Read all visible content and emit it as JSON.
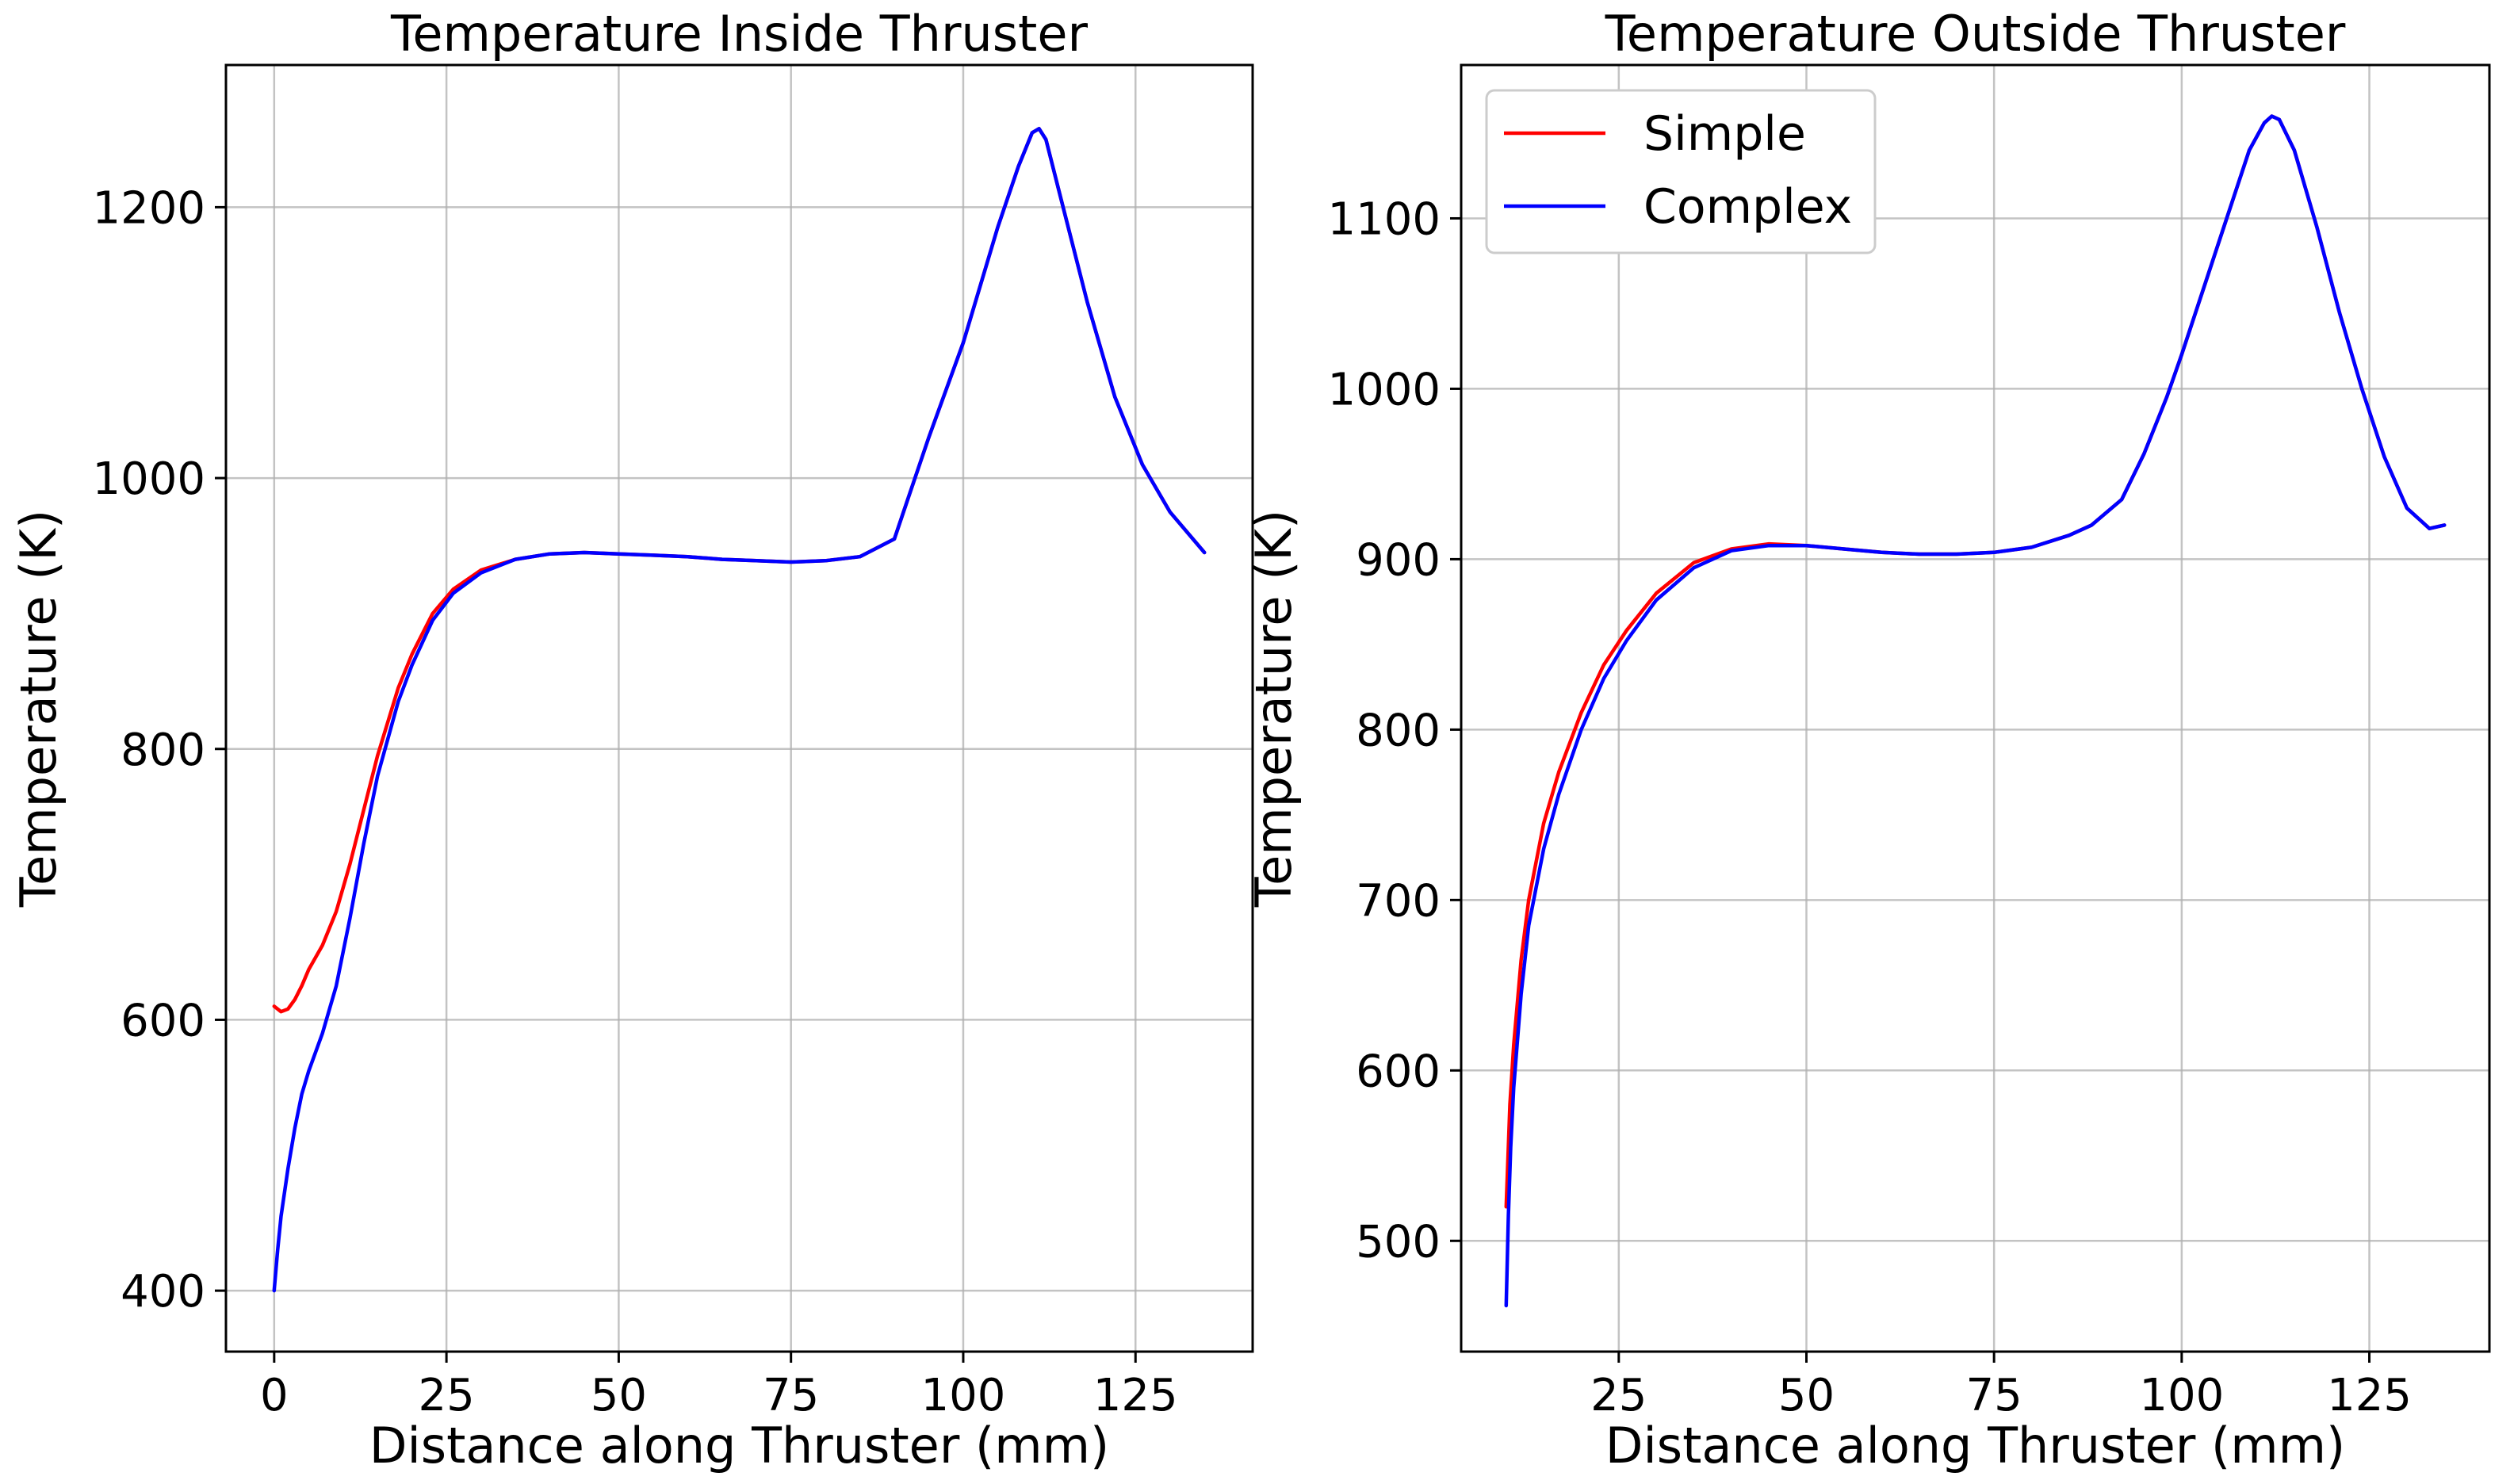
{
  "figure": {
    "charts_label": "Two line charts comparing Simple and Complex temperature models"
  },
  "colors": {
    "simple": "#ff0000",
    "complex": "#0000ff"
  },
  "chart_data": [
    {
      "type": "line",
      "title": "Temperature Inside Thruster",
      "xlabel": "Distance along Thruster (mm)",
      "ylabel": "Temperature (K)",
      "xlim": [
        -7,
        142
      ],
      "ylim": [
        355,
        1305
      ],
      "xticks": [
        0,
        25,
        50,
        75,
        100,
        125
      ],
      "yticks": [
        400,
        600,
        800,
        1000,
        1200
      ],
      "grid": true,
      "legend": null,
      "series": [
        {
          "name": "Simple",
          "color": "#ff0000",
          "x": [
            0,
            1,
            2,
            3,
            4,
            5,
            7,
            9,
            11,
            13,
            15,
            18,
            20,
            23,
            26,
            30,
            35,
            40,
            45,
            50,
            55,
            60,
            65,
            70,
            75,
            80,
            85,
            90,
            92,
            95,
            100,
            105,
            108,
            110,
            111,
            112,
            114,
            118,
            122,
            126,
            130,
            135
          ],
          "y": [
            610,
            606,
            608,
            615,
            625,
            637,
            655,
            680,
            715,
            755,
            795,
            845,
            870,
            900,
            918,
            932,
            940,
            944,
            945,
            944,
            943,
            942,
            940,
            939,
            938,
            939,
            942,
            955,
            985,
            1030,
            1100,
            1185,
            1230,
            1255,
            1258,
            1250,
            1210,
            1130,
            1060,
            1010,
            975,
            945
          ]
        },
        {
          "name": "Complex",
          "color": "#0000ff",
          "x": [
            0,
            0.5,
            1,
            2,
            3,
            4,
            5,
            7,
            9,
            11,
            13,
            15,
            18,
            20,
            23,
            26,
            30,
            35,
            40,
            45,
            50,
            55,
            60,
            65,
            70,
            75,
            80,
            85,
            90,
            92,
            95,
            100,
            105,
            108,
            110,
            111,
            112,
            114,
            118,
            122,
            126,
            130,
            135
          ],
          "y": [
            400,
            430,
            455,
            490,
            520,
            545,
            562,
            590,
            625,
            675,
            730,
            780,
            835,
            862,
            895,
            915,
            930,
            940,
            944,
            945,
            944,
            943,
            942,
            940,
            939,
            938,
            939,
            942,
            955,
            985,
            1030,
            1100,
            1185,
            1230,
            1255,
            1258,
            1250,
            1210,
            1130,
            1060,
            1010,
            975,
            945
          ]
        }
      ]
    },
    {
      "type": "line",
      "title": "Temperature Outside Thruster",
      "xlabel": "Distance along Thruster (mm)",
      "ylabel": "Temperature (K)",
      "xlim": [
        4,
        141
      ],
      "ylim": [
        435,
        1190
      ],
      "xticks": [
        25,
        50,
        75,
        100,
        125
      ],
      "yticks": [
        500,
        600,
        700,
        800,
        900,
        1000,
        1100
      ],
      "grid": true,
      "legend": "top-left",
      "series": [
        {
          "name": "Simple",
          "color": "#ff0000",
          "x": [
            10,
            10.5,
            11,
            12,
            13,
            15,
            17,
            20,
            23,
            26,
            30,
            35,
            40,
            45,
            50,
            55,
            60,
            65,
            70,
            75,
            80,
            85,
            88,
            92,
            95,
            98,
            100,
            103,
            106,
            109,
            111,
            112,
            113,
            115,
            118,
            121,
            124,
            127,
            130,
            133,
            135
          ],
          "y": [
            520,
            580,
            615,
            665,
            700,
            745,
            775,
            810,
            838,
            858,
            880,
            898,
            906,
            909,
            908,
            906,
            904,
            903,
            903,
            904,
            907,
            914,
            920,
            935,
            962,
            995,
            1020,
            1060,
            1100,
            1140,
            1156,
            1160,
            1158,
            1140,
            1095,
            1045,
            1000,
            960,
            930,
            918,
            920
          ]
        },
        {
          "name": "Complex",
          "color": "#0000ff",
          "x": [
            10,
            10.3,
            10.6,
            11,
            12,
            13,
            15,
            17,
            20,
            23,
            26,
            30,
            35,
            40,
            45,
            50,
            55,
            60,
            65,
            70,
            75,
            80,
            85,
            88,
            92,
            95,
            98,
            100,
            103,
            106,
            109,
            111,
            112,
            113,
            115,
            118,
            121,
            124,
            127,
            130,
            133,
            135
          ],
          "y": [
            462,
            515,
            555,
            590,
            645,
            685,
            730,
            762,
            800,
            830,
            852,
            876,
            895,
            905,
            908,
            908,
            906,
            904,
            903,
            903,
            904,
            907,
            914,
            920,
            935,
            962,
            995,
            1020,
            1060,
            1100,
            1140,
            1156,
            1160,
            1158,
            1140,
            1095,
            1045,
            1000,
            960,
            930,
            918,
            920
          ]
        }
      ]
    }
  ]
}
